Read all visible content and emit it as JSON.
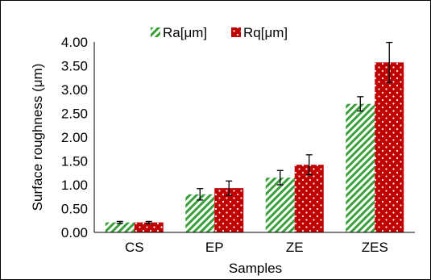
{
  "chart_data": {
    "type": "bar",
    "xlabel": "Samples",
    "ylabel": "Surface roughness (μm)",
    "categories": [
      "CS",
      "EP",
      "ZE",
      "ZES"
    ],
    "ylim": [
      0,
      4
    ],
    "yticks": [
      "0.00",
      "0.50",
      "1.00",
      "1.50",
      "2.00",
      "2.50",
      "3.00",
      "3.50",
      "4.00"
    ],
    "grid": false,
    "legend_position": "top",
    "series": [
      {
        "name": "Ra[μm]",
        "pattern": "green-diagonal-stripes",
        "color": "#3aa03a",
        "values": [
          0.21,
          0.8,
          1.15,
          2.7
        ],
        "errors": [
          0.02,
          0.12,
          0.15,
          0.15
        ]
      },
      {
        "name": "Rq[μm]",
        "pattern": "red-dots",
        "color": "#c00000",
        "values": [
          0.21,
          0.93,
          1.42,
          3.57
        ],
        "errors": [
          0.02,
          0.15,
          0.21,
          0.42
        ]
      }
    ]
  }
}
